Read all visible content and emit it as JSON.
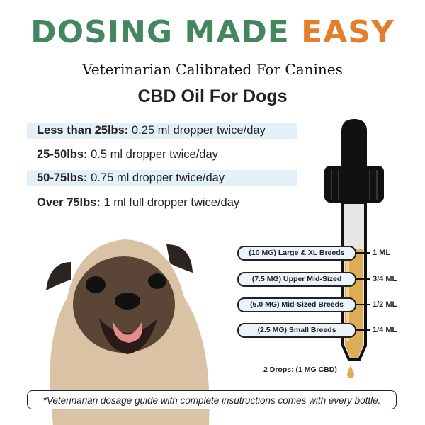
{
  "header": {
    "title_part1": "DOSING MADE",
    "title_part2": "EASY",
    "subtitle": "Veterinarian Calibrated For Canines",
    "product": "CBD Oil For Dogs"
  },
  "dosage": [
    {
      "weight": "Less than 25lbs:",
      "dose": "0.25 ml dropper twice/day"
    },
    {
      "weight": "25-50lbs:",
      "dose": "0.5 ml dropper twice/day"
    },
    {
      "weight": "50-75lbs:",
      "dose": "0.75 ml dropper twice/day"
    },
    {
      "weight": "Over 75lbs:",
      "dose": "1 ml full dropper twice/day"
    }
  ],
  "dropper": {
    "levels": [
      {
        "label": "(10 MG) Large & XL Breeds",
        "ml": "1 ML"
      },
      {
        "label": "(7.5 MG) Upper Mid-Sized",
        "ml": "3/4 ML"
      },
      {
        "label": "(5.0 MG) Mid-Sized Breeds",
        "ml": "1/2 ML"
      },
      {
        "label": "(2.5 MG) Small Breeds",
        "ml": "1/4 ML"
      }
    ],
    "drops_note": "2 Drops: (1 MG CBD)"
  },
  "footer": "*Veterinarian dosage guide with complete insutructions comes with every bottle.",
  "colors": {
    "green": "#44875F",
    "orange": "#E37E2A",
    "oil": "#DDAE55",
    "row_shade": "#E4F0F7"
  }
}
